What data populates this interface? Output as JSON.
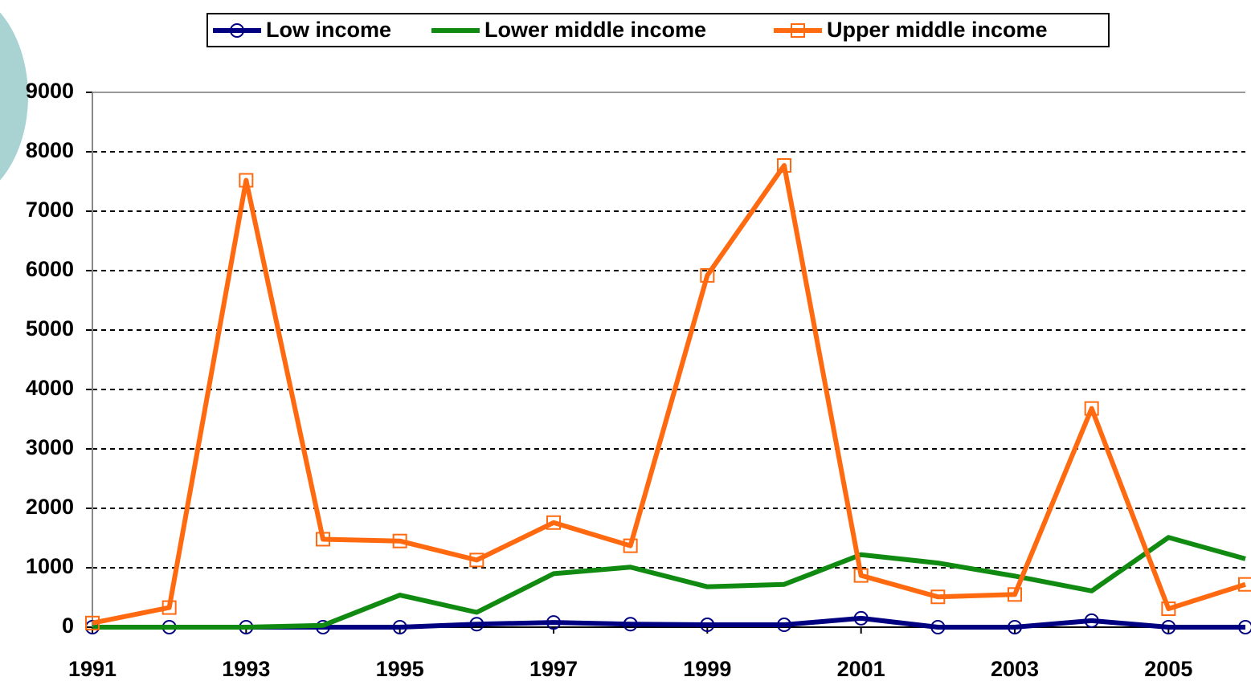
{
  "chart_data": {
    "type": "line",
    "x": [
      1991,
      1992,
      1993,
      1994,
      1995,
      1996,
      1997,
      1998,
      1999,
      2000,
      2001,
      2002,
      2003,
      2004,
      2005,
      2006
    ],
    "xlim": [
      1991,
      2006
    ],
    "xticks": [
      1991,
      1993,
      1995,
      1997,
      1999,
      2001,
      2003,
      2005
    ],
    "ylim": [
      0,
      9000
    ],
    "yticks": [
      0,
      1000,
      2000,
      3000,
      4000,
      5000,
      6000,
      7000,
      8000,
      9000
    ],
    "grid": true,
    "legend": "top",
    "series": [
      {
        "name": "Low income",
        "color": "#000080",
        "marker": "circle",
        "values": [
          0,
          0,
          0,
          0,
          0,
          50,
          80,
          50,
          40,
          40,
          150,
          0,
          0,
          110,
          0,
          0
        ]
      },
      {
        "name": "Lower middle income",
        "color": "#108a10",
        "marker": "none",
        "values": [
          0,
          0,
          0,
          30,
          540,
          250,
          900,
          1010,
          680,
          720,
          1220,
          1080,
          860,
          610,
          1510,
          1150
        ]
      },
      {
        "name": "Upper middle income",
        "color": "#ff6a10",
        "marker": "square",
        "values": [
          70,
          330,
          7520,
          1480,
          1450,
          1130,
          1760,
          1370,
          5920,
          7770,
          870,
          510,
          550,
          3680,
          310,
          720
        ]
      }
    ]
  }
}
